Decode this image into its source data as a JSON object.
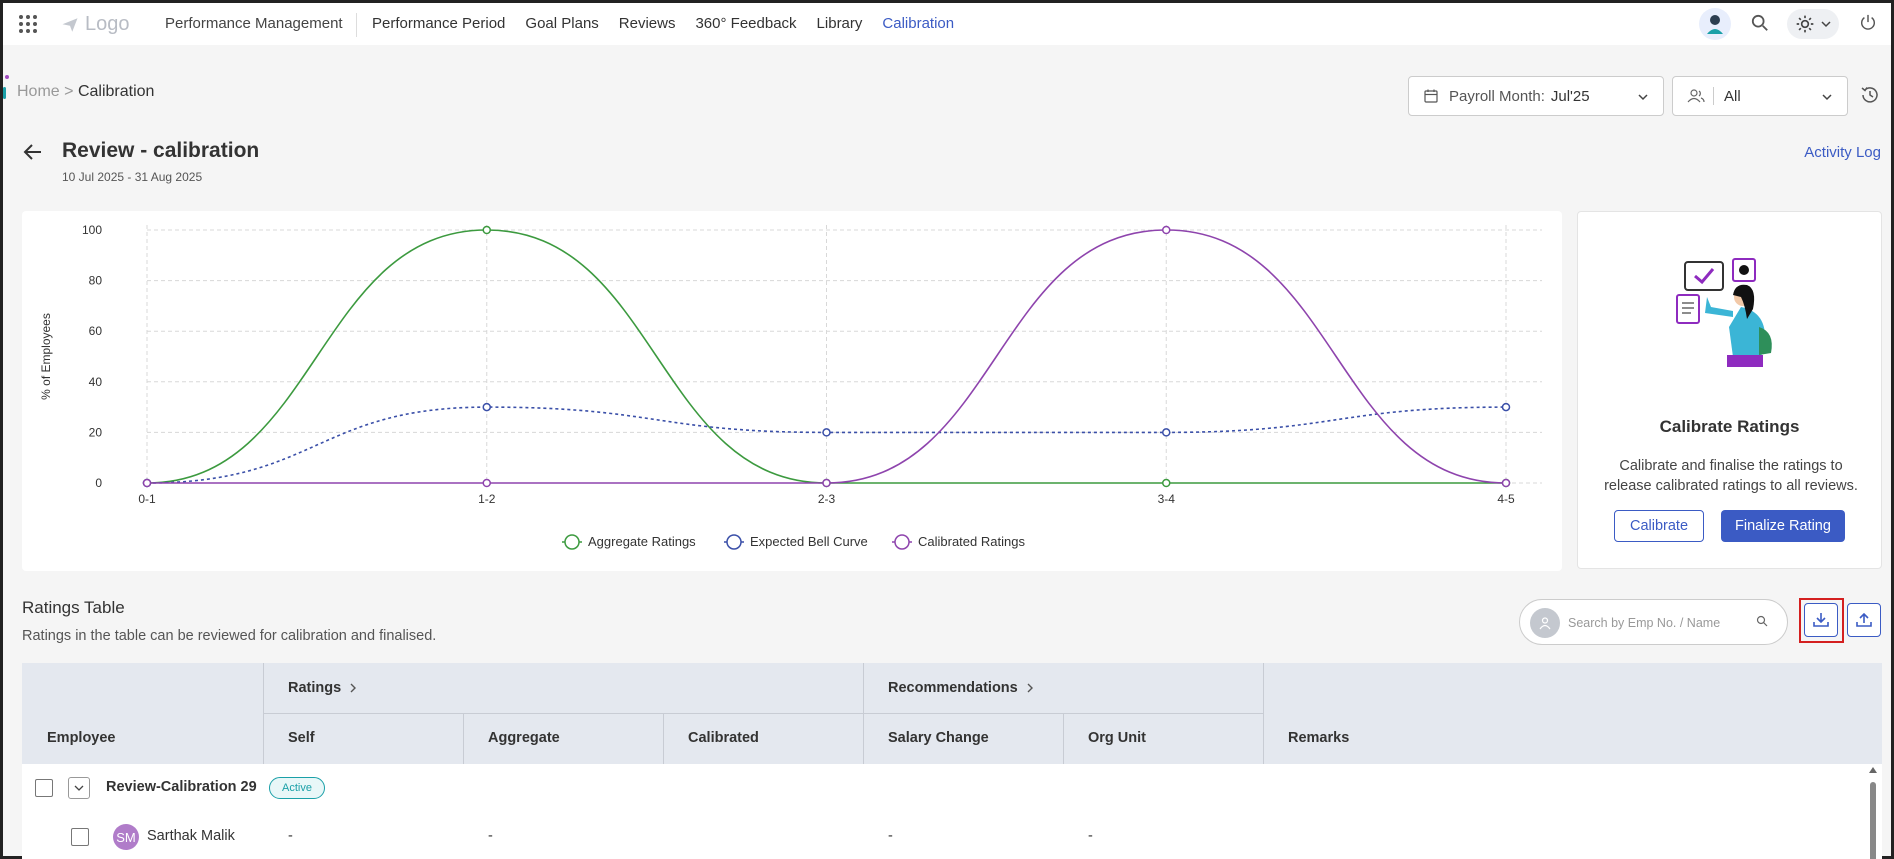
{
  "nav": {
    "logo": "Logo",
    "product": "Performance Management",
    "links": [
      "Performance Period",
      "Goal Plans",
      "Reviews",
      "360° Feedback",
      "Library",
      "Calibration"
    ]
  },
  "breadcrumb": {
    "home": "Home",
    "sep": ">",
    "current": "Calibration"
  },
  "filters": {
    "payroll_label": "Payroll Month:",
    "payroll_value": "Jul'25",
    "group_value": "All"
  },
  "header": {
    "title": "Review - calibration",
    "dates": "10 Jul 2025 - 31 Aug 2025",
    "activity_log": "Activity Log"
  },
  "chart_data": {
    "type": "line",
    "categories": [
      "0-1",
      "1-2",
      "2-3",
      "3-4",
      "4-5"
    ],
    "ylabel": "% of Employees",
    "ylim": [
      0,
      100
    ],
    "yticks": [
      0,
      20,
      40,
      60,
      80,
      100
    ],
    "grid": true,
    "legend_position": "bottom",
    "series": [
      {
        "name": "Aggregate Ratings",
        "values": [
          0,
          100,
          0,
          0,
          0
        ],
        "color": "#3c9a3f",
        "style": "solid"
      },
      {
        "name": "Expected Bell Curve",
        "values": [
          0,
          30,
          20,
          20,
          30
        ],
        "color": "#3a4fa8",
        "style": "dotted"
      },
      {
        "name": "Calibrated Ratings",
        "values": [
          0,
          0,
          0,
          100,
          0
        ],
        "color": "#8e44ad",
        "style": "solid"
      }
    ]
  },
  "calibrate_card": {
    "title": "Calibrate Ratings",
    "description": "Calibrate and finalise the ratings to release calibrated ratings to all reviews.",
    "calibrate_button": "Calibrate",
    "finalize_button": "Finalize Rating"
  },
  "ratings_table": {
    "title": "Ratings Table",
    "subtitle": "Ratings in the table can be reviewed for calibration and finalised.",
    "search_placeholder": "Search by Emp No. / Name",
    "group_headers": {
      "ratings": "Ratings",
      "recommendations": "Recommendations"
    },
    "columns": {
      "employee": "Employee",
      "self": "Self",
      "aggregate": "Aggregate",
      "calibrated": "Calibrated",
      "salary_change": "Salary Change",
      "org_unit": "Org Unit",
      "remarks": "Remarks"
    },
    "group_row": {
      "name": "Review-Calibration 29",
      "status": "Active"
    },
    "rows": [
      {
        "initials": "SM",
        "name": "Sarthak Malik",
        "self": "-",
        "aggregate": "-",
        "salary_change": "-",
        "org_unit": "-"
      }
    ]
  }
}
